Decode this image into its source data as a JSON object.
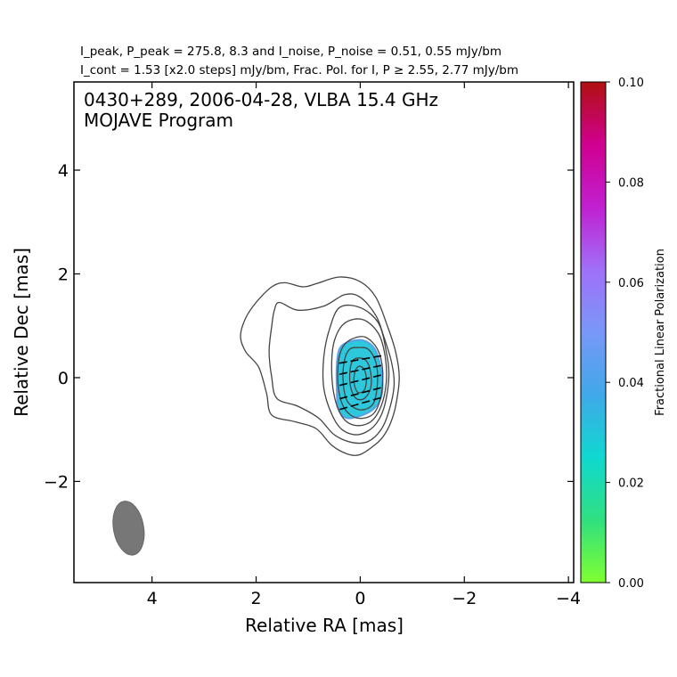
{
  "header": {
    "line1": "I_peak, P_peak = 275.8, 8.3 and I_noise, P_noise = 0.51, 0.55 mJy/bm",
    "line2": "I_cont = 1.53 [x2.0 steps] mJy/bm, Frac. Pol. for I, P ≥ 2.55, 2.77 mJy/bm"
  },
  "chart_data": {
    "type": "contour",
    "title": "0430+289, 2006-04-28, VLBA 15.4 GHz",
    "subtitle": "MOJAVE Program",
    "xlabel": "Relative RA [mas]",
    "ylabel": "Relative Dec [mas]",
    "xlim": [
      5.5,
      -4.1
    ],
    "ylim": [
      -3.95,
      5.7
    ],
    "xticks": [
      4,
      2,
      0,
      -2,
      -4
    ],
    "xtick_labels": [
      "4",
      "2",
      "0",
      "−2",
      "−4"
    ],
    "yticks": [
      4,
      2,
      0,
      -2
    ],
    "ytick_labels": [
      "4",
      "2",
      "0",
      "−2"
    ],
    "colorbar": {
      "label": "Fractional Linear Polarization",
      "min": 0.0,
      "max": 0.1,
      "ticks": [
        0.0,
        0.02,
        0.04,
        0.06,
        0.08,
        0.1
      ],
      "tick_labels": [
        "0.00",
        "0.02",
        "0.04",
        "0.06",
        "0.08",
        "0.10"
      ],
      "colors": [
        "#80ff30",
        "#30e080",
        "#10d8d0",
        "#40a8e8",
        "#7898f8",
        "#a070f8",
        "#c020d0",
        "#d00090",
        "#b01010"
      ]
    },
    "contour_base_mJy": 1.53,
    "contour_step_factor": 2.0,
    "contours": [
      {
        "level": 1,
        "points": [
          [
            1.45,
            1.83
          ],
          [
            1.1,
            1.75
          ],
          [
            0.82,
            1.82
          ],
          [
            0.4,
            1.94
          ],
          [
            0.0,
            1.85
          ],
          [
            -0.3,
            1.55
          ],
          [
            -0.52,
            1.0
          ],
          [
            -0.68,
            0.5
          ],
          [
            -0.75,
            0.0
          ],
          [
            -0.68,
            -0.55
          ],
          [
            -0.58,
            -0.88
          ],
          [
            -0.45,
            -1.12
          ],
          [
            -0.3,
            -1.28
          ],
          [
            0.0,
            -1.48
          ],
          [
            0.25,
            -1.47
          ],
          [
            0.55,
            -1.3
          ],
          [
            0.85,
            -0.98
          ],
          [
            1.25,
            -0.85
          ],
          [
            1.7,
            -0.72
          ],
          [
            1.8,
            -0.3
          ],
          [
            1.95,
            0.2
          ],
          [
            2.2,
            0.5
          ],
          [
            2.3,
            0.8
          ],
          [
            2.2,
            1.15
          ],
          [
            2.0,
            1.45
          ],
          [
            1.7,
            1.75
          ]
        ]
      },
      {
        "level": 2,
        "points": [
          [
            1.55,
            1.45
          ],
          [
            1.2,
            1.3
          ],
          [
            0.7,
            1.38
          ],
          [
            0.3,
            1.6
          ],
          [
            0.0,
            1.55
          ],
          [
            -0.3,
            1.2
          ],
          [
            -0.45,
            0.8
          ],
          [
            -0.6,
            0.3
          ],
          [
            -0.65,
            -0.15
          ],
          [
            -0.55,
            -0.65
          ],
          [
            -0.4,
            -1.0
          ],
          [
            -0.15,
            -1.23
          ],
          [
            0.15,
            -1.25
          ],
          [
            0.5,
            -1.1
          ],
          [
            0.8,
            -0.78
          ],
          [
            1.2,
            -0.55
          ],
          [
            1.6,
            -0.4
          ],
          [
            1.7,
            0.0
          ],
          [
            1.75,
            0.5
          ],
          [
            1.7,
            1.0
          ],
          [
            1.65,
            1.3
          ]
        ]
      },
      {
        "level": 4,
        "points": [
          [
            0.4,
            1.35
          ],
          [
            0.0,
            1.35
          ],
          [
            -0.35,
            1.05
          ],
          [
            -0.5,
            0.5
          ],
          [
            -0.55,
            0.0
          ],
          [
            -0.45,
            -0.6
          ],
          [
            -0.25,
            -0.95
          ],
          [
            0.05,
            -1.1
          ],
          [
            0.35,
            -1.0
          ],
          [
            0.55,
            -0.7
          ],
          [
            0.7,
            -0.2
          ],
          [
            0.7,
            0.4
          ],
          [
            0.6,
            0.9
          ]
        ]
      },
      {
        "level": 8,
        "points": [
          [
            0.3,
            1.05
          ],
          [
            -0.05,
            1.12
          ],
          [
            -0.35,
            0.85
          ],
          [
            -0.48,
            0.4
          ],
          [
            -0.5,
            -0.1
          ],
          [
            -0.4,
            -0.55
          ],
          [
            -0.2,
            -0.85
          ],
          [
            0.1,
            -0.92
          ],
          [
            0.35,
            -0.75
          ],
          [
            0.5,
            -0.35
          ],
          [
            0.55,
            0.2
          ],
          [
            0.5,
            0.7
          ]
        ]
      },
      {
        "level": 16,
        "points": [
          [
            0.15,
            0.75
          ],
          [
            -0.1,
            0.78
          ],
          [
            -0.33,
            0.55
          ],
          [
            -0.43,
            0.15
          ],
          [
            -0.4,
            -0.35
          ],
          [
            -0.25,
            -0.7
          ],
          [
            0.05,
            -0.78
          ],
          [
            0.3,
            -0.6
          ],
          [
            0.42,
            -0.2
          ],
          [
            0.42,
            0.3
          ],
          [
            0.33,
            0.6
          ]
        ]
      },
      {
        "level": 32,
        "points": [
          [
            0.05,
            0.58
          ],
          [
            -0.15,
            0.55
          ],
          [
            -0.3,
            0.3
          ],
          [
            -0.33,
            -0.1
          ],
          [
            -0.25,
            -0.5
          ],
          [
            0.0,
            -0.62
          ],
          [
            0.25,
            -0.45
          ],
          [
            0.33,
            -0.05
          ],
          [
            0.3,
            0.35
          ],
          [
            0.2,
            0.55
          ]
        ]
      },
      {
        "level": 64,
        "points": [
          [
            0.03,
            0.38
          ],
          [
            -0.12,
            0.32
          ],
          [
            -0.2,
            0.1
          ],
          [
            -0.2,
            -0.2
          ],
          [
            -0.08,
            -0.4
          ],
          [
            0.08,
            -0.4
          ],
          [
            0.18,
            -0.2
          ],
          [
            0.2,
            0.1
          ],
          [
            0.15,
            0.32
          ]
        ]
      },
      {
        "level": 128,
        "points": [
          [
            0.02,
            0.22
          ],
          [
            -0.08,
            0.15
          ],
          [
            -0.12,
            -0.05
          ],
          [
            -0.07,
            -0.25
          ],
          [
            0.05,
            -0.28
          ],
          [
            0.12,
            -0.1
          ],
          [
            0.1,
            0.12
          ]
        ]
      }
    ],
    "polarization_region": {
      "fractional_pol": 0.027,
      "color": "#2ec8dc",
      "outline": [
        [
          0.25,
          0.68
        ],
        [
          -0.05,
          0.72
        ],
        [
          -0.28,
          0.55
        ],
        [
          -0.4,
          0.15
        ],
        [
          -0.42,
          -0.3
        ],
        [
          -0.28,
          -0.58
        ],
        [
          -0.05,
          -0.72
        ],
        [
          0.25,
          -0.78
        ],
        [
          0.42,
          -0.6
        ],
        [
          0.45,
          -0.2
        ],
        [
          0.45,
          0.25
        ],
        [
          0.4,
          0.55
        ]
      ]
    },
    "evpa_vectors": [
      {
        "x": 0.0,
        "y": 0.35,
        "angle_deg": 80
      },
      {
        "x": 0.0,
        "y": 0.15,
        "angle_deg": 78
      },
      {
        "x": 0.0,
        "y": -0.05,
        "angle_deg": 76
      },
      {
        "x": 0.0,
        "y": -0.3,
        "angle_deg": 75
      },
      {
        "x": 0.0,
        "y": -0.5,
        "angle_deg": 74
      }
    ],
    "beam": {
      "x": 4.45,
      "y": -2.9,
      "major": 1.05,
      "minor": 0.58,
      "pa_deg": -10,
      "color": "#777777"
    }
  }
}
